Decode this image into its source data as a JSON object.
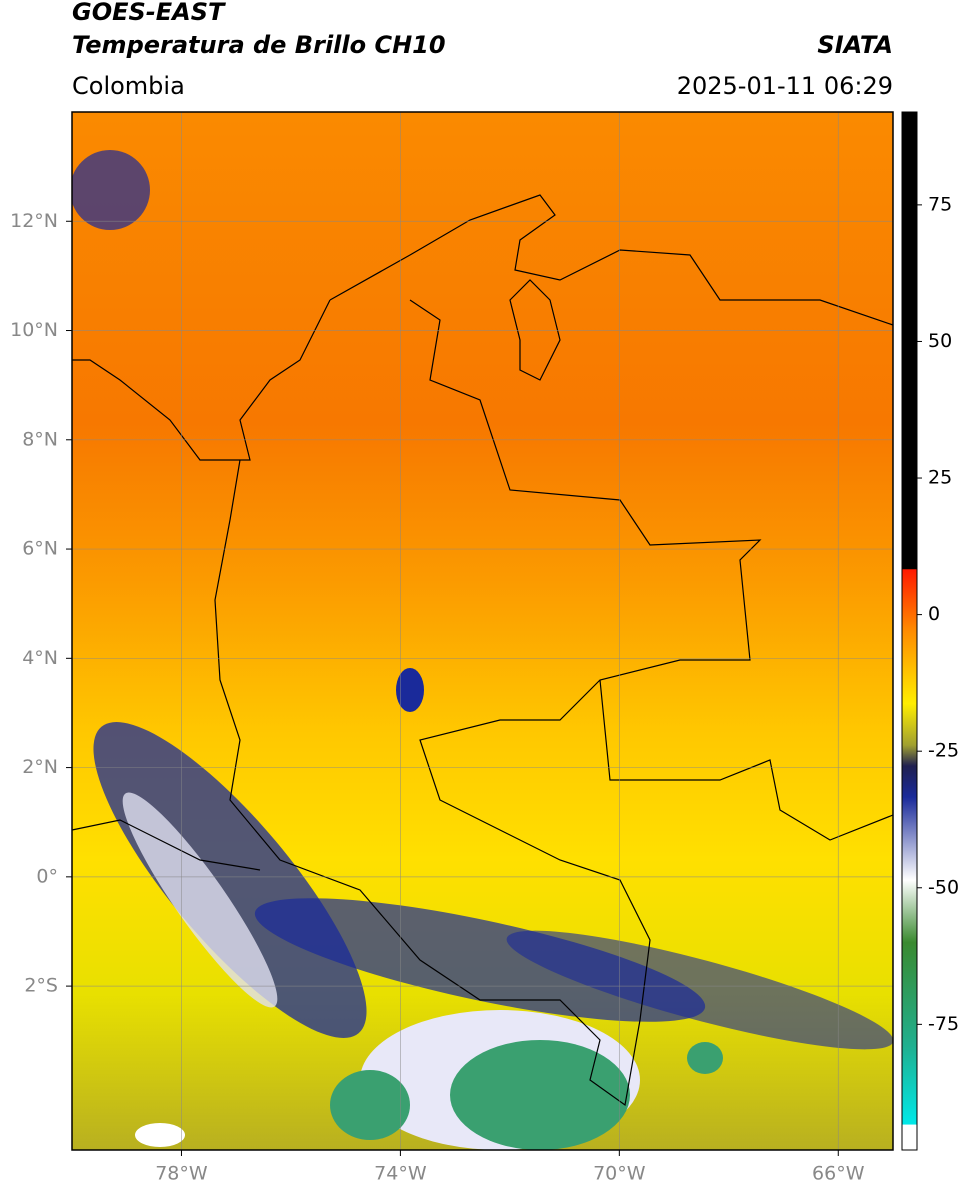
{
  "header": {
    "line1": "GOES-EAST",
    "line2": "Temperatura de Brillo CH10",
    "source": "SIATA",
    "region": "Colombia",
    "datetime": "2025-01-11 06:29"
  },
  "map": {
    "xlim": [
      -80,
      -65
    ],
    "ylim": [
      -5,
      14
    ],
    "xticks": [
      {
        "value": -78,
        "label": "78°W"
      },
      {
        "value": -74,
        "label": "74°W"
      },
      {
        "value": -70,
        "label": "70°W"
      },
      {
        "value": -66,
        "label": "66°W"
      }
    ],
    "yticks": [
      {
        "value": 12,
        "label": "12°N"
      },
      {
        "value": 10,
        "label": "10°N"
      },
      {
        "value": 8,
        "label": "8°N"
      },
      {
        "value": 6,
        "label": "6°N"
      },
      {
        "value": 4,
        "label": "4°N"
      },
      {
        "value": 2,
        "label": "2°N"
      },
      {
        "value": 0,
        "label": "0°"
      },
      {
        "value": -2,
        "label": "2°S"
      }
    ]
  },
  "colorbar": {
    "range": [
      -98,
      92
    ],
    "ticks": [
      75,
      50,
      25,
      0,
      -25,
      -50,
      -75
    ]
  }
}
